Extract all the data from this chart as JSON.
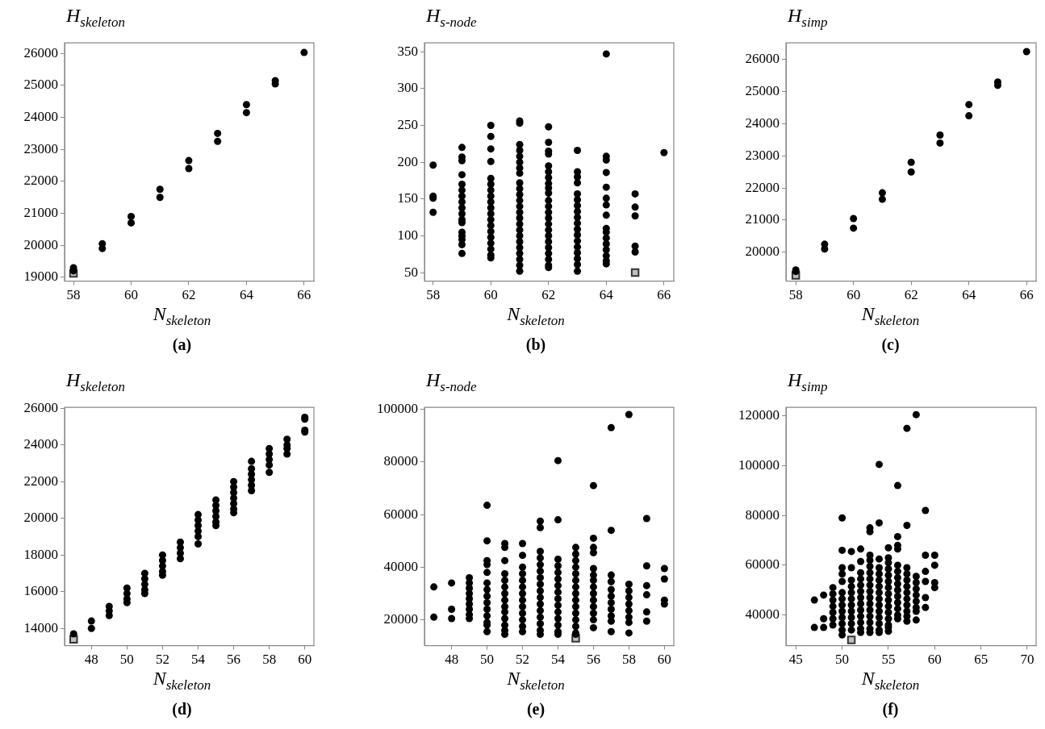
{
  "chart_data": [
    {
      "type": "scatter",
      "ylabel": "H$_{skeleton}$",
      "xlabel": "N$_{skeleton}$",
      "annotations": [
        "(a)"
      ],
      "xlim": [
        57.69,
        66.34
      ],
      "ylim": [
        18880,
        26330
      ],
      "xticks": [
        58,
        60,
        62,
        64,
        66
      ],
      "yticks": [
        19000,
        20000,
        21000,
        22000,
        23000,
        24000,
        25000,
        26000
      ],
      "series": [
        {
          "color": "#000000",
          "marker": "circle",
          "x": [
            58,
            58,
            59,
            59,
            60,
            60,
            61,
            61,
            62,
            62,
            63,
            63,
            64,
            64,
            65,
            65,
            66
          ],
          "values": [
            19300,
            19200,
            20050,
            19900,
            20900,
            20700,
            21750,
            21500,
            22650,
            22400,
            23500,
            23250,
            24400,
            24150,
            25150,
            25050,
            26030
          ]
        },
        {
          "color": "#c0c0c0",
          "marker": "square",
          "x": [
            58
          ],
          "values": [
            19120
          ]
        }
      ]
    },
    {
      "type": "scatter",
      "ylabel": "H$_{s-node}$",
      "xlabel": "N$_{skeleton}$",
      "annotations": [
        "(b)"
      ],
      "xlim": [
        57.7,
        66.34
      ],
      "ylim": [
        38.5,
        362
      ],
      "xticks": [
        58,
        60,
        62,
        64,
        66
      ],
      "yticks": [
        50,
        100,
        150,
        200,
        250,
        300,
        350
      ],
      "series": [
        {
          "color": "#000000",
          "marker": "circle",
          "x": [
            58,
            58,
            58,
            58,
            59,
            59,
            59,
            59,
            59,
            59,
            59,
            59,
            59,
            59,
            59,
            59,
            59,
            59,
            59,
            59,
            59,
            60,
            60,
            60,
            60,
            60,
            60,
            60,
            60,
            60,
            60,
            60,
            60,
            60,
            60,
            60,
            60,
            60,
            60,
            60,
            61,
            61,
            61,
            61,
            61,
            61,
            61,
            61,
            61,
            61,
            61,
            61,
            61,
            61,
            61,
            61,
            61,
            61,
            61,
            61,
            61,
            61,
            61,
            61,
            62,
            62,
            62,
            62,
            62,
            62,
            62,
            62,
            62,
            62,
            62,
            62,
            62,
            62,
            62,
            62,
            62,
            62,
            62,
            62,
            62,
            62,
            62,
            63,
            63,
            63,
            63,
            63,
            63,
            63,
            63,
            63,
            63,
            63,
            63,
            63,
            63,
            63,
            63,
            63,
            63,
            64,
            64,
            64,
            64,
            64,
            64,
            64,
            64,
            64,
            64,
            64,
            64,
            64,
            64,
            64,
            64,
            65,
            65,
            65,
            65,
            65,
            66
          ],
          "values": [
            196,
            154,
            151,
            132,
            220,
            207,
            202,
            183,
            170,
            162,
            154,
            146,
            138,
            130,
            122,
            118,
            105,
            100,
            95,
            88,
            76,
            250,
            235,
            218,
            201,
            178,
            170,
            162,
            154,
            146,
            138,
            130,
            122,
            114,
            106,
            98,
            90,
            82,
            74,
            70,
            256,
            253,
            224,
            216,
            208,
            200,
            192,
            185,
            172,
            164,
            156,
            148,
            140,
            132,
            124,
            116,
            108,
            100,
            92,
            84,
            76,
            68,
            60,
            52,
            248,
            227,
            215,
            211,
            195,
            187,
            179,
            171,
            165,
            158,
            148,
            140,
            132,
            124,
            116,
            108,
            100,
            92,
            84,
            76,
            68,
            60,
            57,
            216,
            187,
            180,
            172,
            157,
            149,
            141,
            133,
            125,
            117,
            109,
            101,
            93,
            85,
            77,
            69,
            61,
            52,
            347,
            208,
            203,
            186,
            166,
            151,
            142,
            128,
            110,
            105,
            97,
            89,
            81,
            73,
            66,
            62,
            157,
            139,
            127,
            86,
            78,
            213
          ]
        },
        {
          "color": "#c0c0c0",
          "marker": "square",
          "x": [
            65
          ],
          "values": [
            50
          ]
        }
      ]
    },
    {
      "type": "scatter",
      "ylabel": "H$_{simp}$",
      "xlabel": "N$_{skeleton}$",
      "annotations": [
        "(c)"
      ],
      "xlim": [
        57.66,
        66.33
      ],
      "ylim": [
        19100,
        26520
      ],
      "xticks": [
        58,
        60,
        62,
        64,
        66
      ],
      "yticks": [
        20000,
        21000,
        22000,
        23000,
        24000,
        25000,
        26000
      ],
      "series": [
        {
          "color": "#000000",
          "marker": "circle",
          "x": [
            58,
            58,
            59,
            59,
            60,
            60,
            61,
            61,
            62,
            62,
            63,
            63,
            64,
            64,
            65,
            65,
            66
          ],
          "values": [
            19450,
            19400,
            20250,
            20100,
            21050,
            20750,
            21850,
            21650,
            22800,
            22500,
            23650,
            23400,
            24600,
            24250,
            25300,
            25200,
            26250
          ]
        },
        {
          "color": "#c0c0c0",
          "marker": "square",
          "x": [
            58
          ],
          "values": [
            19280
          ]
        }
      ]
    },
    {
      "type": "scatter",
      "ylabel": "H$_{skeleton}$",
      "xlabel": "N$_{skeleton}$",
      "annotations": [
        "(d)"
      ],
      "xlim": [
        46.49,
        60.51
      ],
      "ylim": [
        13060,
        26040
      ],
      "xticks": [
        48,
        50,
        52,
        54,
        56,
        58,
        60
      ],
      "yticks": [
        14000,
        16000,
        18000,
        20000,
        22000,
        24000,
        26000
      ],
      "series": [
        {
          "color": "#000000",
          "marker": "circle",
          "x": [
            47,
            48,
            48,
            49,
            49,
            49,
            50,
            50,
            50,
            50,
            51,
            51,
            51,
            51,
            51,
            52,
            52,
            52,
            52,
            52,
            53,
            53,
            53,
            53,
            54,
            54,
            54,
            54,
            54,
            54,
            55,
            55,
            55,
            55,
            55,
            55,
            56,
            56,
            56,
            56,
            56,
            56,
            56,
            57,
            57,
            57,
            57,
            57,
            57,
            58,
            58,
            58,
            58,
            58,
            59,
            59,
            59,
            59,
            60,
            60,
            60,
            60
          ],
          "values": [
            13700,
            14400,
            14000,
            15200,
            14950,
            14700,
            16200,
            15900,
            15600,
            15400,
            17000,
            16700,
            16400,
            16100,
            15900,
            18000,
            17700,
            17400,
            17100,
            16900,
            18700,
            18400,
            18100,
            17800,
            20200,
            19900,
            19600,
            19300,
            19000,
            18600,
            21000,
            20700,
            20400,
            20100,
            19800,
            19600,
            22000,
            21700,
            21400,
            21100,
            20800,
            20500,
            20300,
            23100,
            22700,
            22400,
            22100,
            21800,
            21500,
            23800,
            23500,
            23200,
            22900,
            22500,
            24300,
            24000,
            23800,
            23500,
            25500,
            25400,
            24800,
            24700
          ]
        },
        {
          "color": "#c0c0c0",
          "marker": "square",
          "x": [
            47
          ],
          "values": [
            13400
          ]
        }
      ]
    },
    {
      "type": "scatter",
      "ylabel": "H$_{s-node}$",
      "xlabel": "N$_{skeleton}$",
      "annotations": [
        "(e)"
      ],
      "xlim": [
        46.47,
        60.53
      ],
      "ylim": [
        10200,
        100700
      ],
      "xticks": [
        48,
        50,
        52,
        54,
        56,
        58,
        60
      ],
      "yticks": [
        20000,
        40000,
        60000,
        80000,
        100000
      ],
      "series": [
        {
          "color": "#000000",
          "marker": "circle",
          "x": [
            47,
            47,
            48,
            48,
            48,
            49,
            49,
            49,
            49,
            49,
            49,
            49,
            49,
            49,
            50,
            50,
            50,
            50,
            50,
            50,
            50,
            50,
            50,
            50,
            50,
            50,
            50,
            50,
            51,
            51,
            51,
            51,
            51,
            51,
            51,
            51,
            51,
            51,
            51,
            51,
            51,
            51,
            52,
            52,
            52,
            52,
            52,
            52,
            52,
            52,
            52,
            52,
            52,
            52,
            52,
            53,
            53,
            53,
            53,
            53,
            53,
            53,
            53,
            53,
            53,
            53,
            53,
            53,
            53,
            53,
            53,
            54,
            54,
            54,
            54,
            54,
            54,
            54,
            54,
            54,
            54,
            54,
            54,
            54,
            54,
            54,
            55,
            55,
            55,
            55,
            55,
            55,
            55,
            55,
            55,
            55,
            55,
            55,
            55,
            55,
            55,
            56,
            56,
            56,
            56,
            56,
            56,
            56,
            56,
            56,
            56,
            56,
            56,
            56,
            56,
            57,
            57,
            57,
            57,
            57,
            57,
            57,
            57,
            57,
            57,
            57,
            58,
            58,
            58,
            58,
            58,
            58,
            58,
            58,
            58,
            59,
            59,
            59,
            59,
            59,
            59,
            60,
            60,
            60,
            60
          ],
          "values": [
            32500,
            21000,
            34000,
            24000,
            20500,
            36000,
            34000,
            32000,
            30000,
            28000,
            26000,
            24000,
            22000,
            20500,
            63500,
            50000,
            42500,
            41000,
            38000,
            34000,
            31500,
            29000,
            26500,
            24000,
            21500,
            19000,
            18000,
            15500,
            49000,
            47500,
            42500,
            37500,
            35000,
            32500,
            30000,
            27500,
            25000,
            23000,
            20500,
            18000,
            16000,
            14500,
            49000,
            44500,
            40000,
            37500,
            35000,
            32500,
            30000,
            27500,
            25000,
            22500,
            20000,
            17500,
            15500,
            57500,
            55000,
            46000,
            43500,
            41000,
            38500,
            36000,
            33500,
            31000,
            28500,
            26000,
            23500,
            21000,
            18500,
            16000,
            14500,
            80500,
            58000,
            43000,
            40500,
            38000,
            35500,
            33000,
            30500,
            28000,
            25500,
            23000,
            20500,
            18000,
            15500,
            14500,
            47500,
            45000,
            42500,
            40000,
            37500,
            35000,
            32500,
            30000,
            27500,
            25000,
            22500,
            20000,
            17500,
            15000,
            14500,
            71000,
            51000,
            47500,
            45500,
            39500,
            37000,
            35000,
            32500,
            30000,
            27500,
            25000,
            22500,
            20000,
            17000,
            93000,
            54000,
            37000,
            34500,
            31500,
            29000,
            26500,
            24000,
            21500,
            19500,
            15500,
            98000,
            33500,
            31000,
            28500,
            26000,
            23500,
            21000,
            19000,
            15000,
            58500,
            40500,
            33000,
            29500,
            23000,
            19500,
            39500,
            35500,
            27500,
            26000
          ]
        },
        {
          "color": "#c0c0c0",
          "marker": "square",
          "x": [
            55
          ],
          "values": [
            13000
          ]
        }
      ]
    },
    {
      "type": "scatter",
      "ylabel": "H$_{simp}$",
      "xlabel": "N$_{skeleton}$",
      "annotations": [
        "(f)"
      ],
      "xlim": [
        43.93,
        70.96
      ],
      "ylim": [
        27700,
        123400
      ],
      "xticks": [
        45,
        50,
        55,
        60,
        65,
        70
      ],
      "yticks": [
        40000,
        60000,
        80000,
        100000,
        120000
      ],
      "series": [
        {
          "color": "#000000",
          "marker": "circle",
          "x": [
            47,
            47,
            48,
            48,
            48,
            49,
            49,
            49,
            49,
            49,
            49,
            49,
            50,
            50,
            50,
            50,
            50,
            50,
            50,
            50,
            50,
            50,
            50,
            50,
            50,
            51,
            51,
            51,
            51,
            51,
            51,
            51,
            51,
            51,
            51,
            51,
            52,
            52,
            52,
            52,
            52,
            52,
            52,
            52,
            52,
            52,
            52,
            52,
            52,
            53,
            53,
            53,
            53,
            53,
            53,
            53,
            53,
            53,
            53,
            53,
            53,
            53,
            53,
            53,
            53,
            54,
            54,
            54,
            54,
            54,
            54,
            54,
            54,
            54,
            54,
            54,
            54,
            54,
            54,
            54,
            55,
            55,
            55,
            55,
            55,
            55,
            55,
            55,
            55,
            55,
            55,
            55,
            55,
            55,
            55,
            56,
            56,
            56,
            56,
            56,
            56,
            56,
            56,
            56,
            56,
            56,
            56,
            56,
            56,
            57,
            57,
            57,
            57,
            57,
            57,
            57,
            57,
            57,
            57,
            57,
            57,
            58,
            58,
            58,
            58,
            58,
            58,
            58,
            58,
            58,
            59,
            59,
            59,
            59,
            59,
            59,
            60,
            60,
            60,
            60
          ],
          "values": [
            46000,
            35000,
            48000,
            38500,
            35000,
            51000,
            48500,
            46000,
            43500,
            41000,
            38500,
            36000,
            79000,
            66000,
            59000,
            56500,
            53500,
            49000,
            46500,
            44000,
            41500,
            39000,
            36500,
            34000,
            32000,
            65500,
            59000,
            54000,
            51500,
            49000,
            46500,
            44000,
            41500,
            39000,
            36500,
            34000,
            66500,
            61500,
            57000,
            54500,
            52000,
            49500,
            47000,
            44500,
            42000,
            39500,
            37000,
            34500,
            33000,
            75000,
            73500,
            64000,
            62000,
            59500,
            57000,
            54500,
            52000,
            49500,
            47000,
            44500,
            42000,
            39500,
            37000,
            34500,
            33000,
            100500,
            77000,
            62500,
            59000,
            56500,
            54000,
            51500,
            49000,
            46500,
            44000,
            41500,
            39000,
            36500,
            34000,
            33000,
            67000,
            63000,
            61000,
            58500,
            56000,
            53500,
            51000,
            48500,
            46000,
            43500,
            41000,
            38500,
            36000,
            35000,
            33500,
            92000,
            71500,
            68000,
            66500,
            60000,
            57500,
            55000,
            52500,
            50000,
            47500,
            45000,
            42500,
            40000,
            38500,
            115000,
            76000,
            59000,
            56500,
            54000,
            51500,
            49000,
            46500,
            44000,
            41500,
            39500,
            37500,
            120500,
            55500,
            53000,
            50500,
            48000,
            45500,
            43000,
            41500,
            38000,
            82000,
            64000,
            57500,
            53500,
            47000,
            43000,
            64000,
            60000,
            53000,
            51000
          ]
        },
        {
          "color": "#c0c0c0",
          "marker": "square",
          "x": [
            51
          ],
          "values": [
            30000
          ]
        }
      ]
    }
  ]
}
